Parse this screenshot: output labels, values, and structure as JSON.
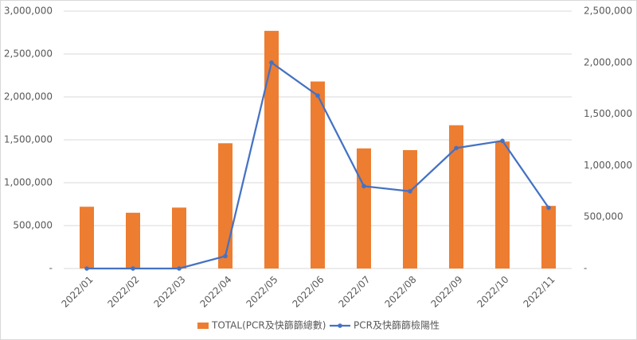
{
  "chart_data": {
    "type": "bar_line",
    "categories": [
      "2022/01",
      "2022/02",
      "2022/03",
      "2022/04",
      "2022/05",
      "2022/06",
      "2022/07",
      "2022/08",
      "2022/09",
      "2022/10",
      "2022/11"
    ],
    "series": [
      {
        "name": "TOTAL(PCR及快篩篩總數)",
        "color": "#ed7d31",
        "type": "bar",
        "values": [
          720000,
          650000,
          710000,
          1460000,
          2770000,
          2180000,
          1400000,
          1380000,
          1670000,
          1480000,
          730000
        ]
      },
      {
        "name": "PCR及快篩篩檢陽性",
        "color": "#4472c4",
        "type": "line",
        "axis": "y2",
        "values": [
          0,
          0,
          0,
          120000,
          2000000,
          1680000,
          800000,
          750000,
          1170000,
          1240000,
          590000
        ]
      }
    ],
    "ylim": [
      0,
      3000000
    ],
    "yticks": [
      {
        "value": 0,
        "label": "-"
      },
      {
        "value": 500000,
        "label": "500,000"
      },
      {
        "value": 1000000,
        "label": "1,000,000"
      },
      {
        "value": 1500000,
        "label": "1,500,000"
      },
      {
        "value": 2000000,
        "label": "2,000,000"
      },
      {
        "value": 2500000,
        "label": "2,500,000"
      },
      {
        "value": 3000000,
        "label": "3,000,000"
      }
    ],
    "y2lim": [
      0,
      2500000
    ],
    "y2ticks": [
      {
        "value": 0,
        "label": "-"
      },
      {
        "value": 500000,
        "label": "500,000"
      },
      {
        "value": 1000000,
        "label": "1,000,000"
      },
      {
        "value": 1500000,
        "label": "1,500,000"
      },
      {
        "value": 2000000,
        "label": "2,000,000"
      },
      {
        "value": 2500000,
        "label": "2,500,000"
      }
    ],
    "grid": true,
    "legend": "bottom"
  }
}
